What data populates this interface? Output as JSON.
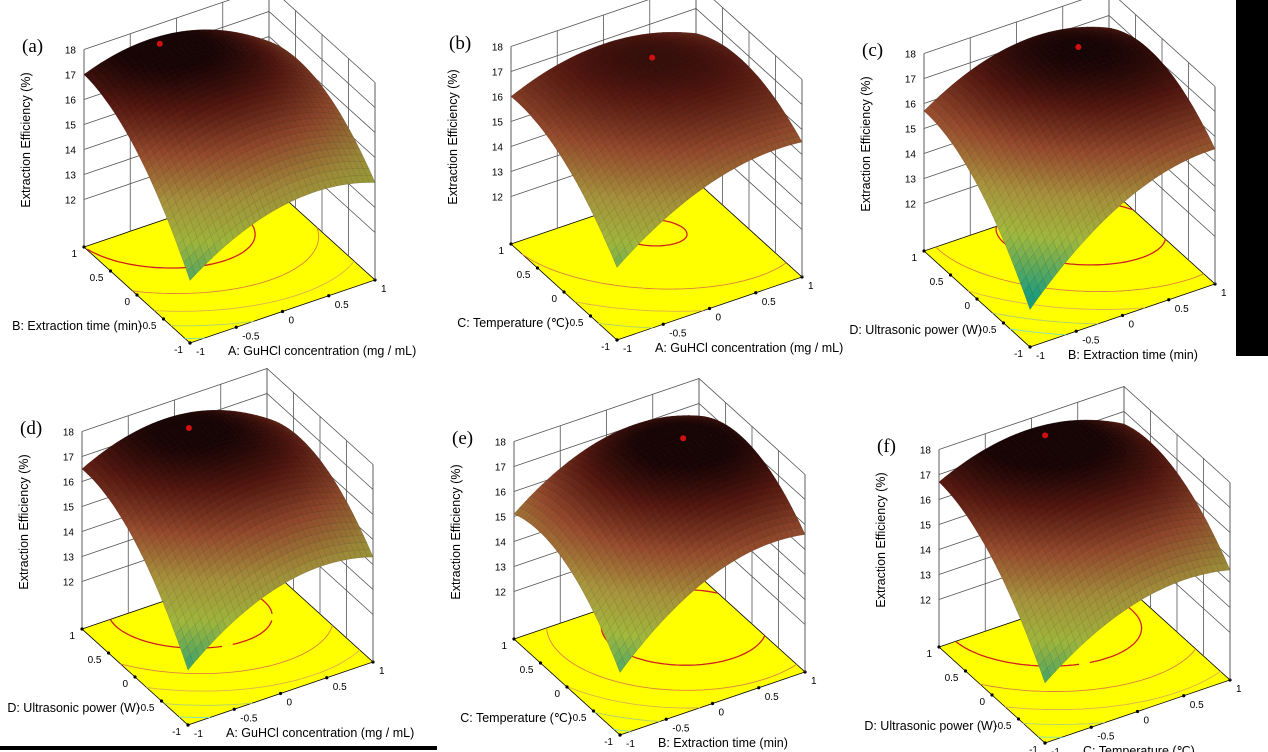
{
  "colors": {
    "floor": "#ffff00",
    "grid": "#555555",
    "optimum_marker": "#d01010",
    "surface_low": "#20a080",
    "surface_high": "#200505"
  },
  "chart_data": [
    {
      "panel_label": "(a)",
      "type": "surface",
      "zlabel": "Extraction Efficiency (%)",
      "xlabel": "A: GuHCl concentration (mg / mL)",
      "ylabel": "B: Extraction time (min)",
      "x_ticks": [
        -1,
        -0.5,
        0,
        0.5,
        1
      ],
      "y_ticks": [
        -1,
        -0.5,
        0,
        0.5,
        1
      ],
      "z_ticks": [
        12,
        13,
        14,
        15,
        16,
        17,
        18
      ],
      "zlim": [
        12,
        18
      ],
      "floor_contours": true,
      "z_estimates": [
        {
          "x": -1,
          "y": -1,
          "z": 12.6
        },
        {
          "x": 1,
          "y": -1,
          "z": 14.0
        },
        {
          "x": -1,
          "y": 1,
          "z": 17.0
        },
        {
          "x": 1,
          "y": 1,
          "z": 15.8
        },
        {
          "x": 0,
          "y": 0,
          "z": 16.9
        }
      ]
    },
    {
      "panel_label": "(b)",
      "type": "surface",
      "zlabel": "Extraction Efficiency (%)",
      "xlabel": "A: GuHCl concentration (mg / mL)",
      "ylabel": "C: Temperature (℃)",
      "x_ticks": [
        -1,
        -0.5,
        0,
        0.5,
        1
      ],
      "y_ticks": [
        -1,
        -0.5,
        0,
        0.5,
        1
      ],
      "z_ticks": [
        12,
        13,
        14,
        15,
        16,
        17,
        18
      ],
      "zlim": [
        12,
        18
      ],
      "floor_contours": true,
      "z_estimates": [
        {
          "x": -1,
          "y": -1,
          "z": 13.0
        },
        {
          "x": 1,
          "y": -1,
          "z": 15.5
        },
        {
          "x": -1,
          "y": 1,
          "z": 16.0
        },
        {
          "x": 1,
          "y": 1,
          "z": 16.0
        },
        {
          "x": 0,
          "y": 0,
          "z": 16.8
        }
      ]
    },
    {
      "panel_label": "(c)",
      "type": "surface",
      "zlabel": "Extraction Efficiency (%)",
      "xlabel": "B: Extraction time (min)",
      "ylabel": "D: Ultrasonic power (W)",
      "x_ticks": [
        -1,
        -0.5,
        0,
        0.5,
        1
      ],
      "y_ticks": [
        -1,
        -0.5,
        0,
        0.5,
        1
      ],
      "z_ticks": [
        12,
        13,
        14,
        15,
        16,
        17,
        18
      ],
      "zlim": [
        12,
        18
      ],
      "floor_contours": true,
      "z_estimates": [
        {
          "x": -1,
          "y": -1,
          "z": 11.6
        },
        {
          "x": 1,
          "y": -1,
          "z": 15.5
        },
        {
          "x": -1,
          "y": 1,
          "z": 15.7
        },
        {
          "x": 1,
          "y": 1,
          "z": 16.5
        },
        {
          "x": 0,
          "y": 0,
          "z": 16.9
        }
      ]
    },
    {
      "panel_label": "(d)",
      "type": "surface",
      "zlabel": "Extraction Efficiency (%)",
      "xlabel": "A: GuHCl concentration (mg / mL)",
      "ylabel": "D: Ultrasonic power (W)",
      "x_ticks": [
        -1,
        -0.5,
        0,
        0.5,
        1
      ],
      "y_ticks": [
        -1,
        -0.5,
        0,
        0.5,
        1
      ],
      "z_ticks": [
        12,
        13,
        14,
        15,
        16,
        17,
        18
      ],
      "zlim": [
        12,
        18
      ],
      "floor_contours": true,
      "z_estimates": [
        {
          "x": -1,
          "y": -1,
          "z": 12.3
        },
        {
          "x": 1,
          "y": -1,
          "z": 14.3
        },
        {
          "x": -1,
          "y": 1,
          "z": 16.5
        },
        {
          "x": 1,
          "y": 1,
          "z": 16.0
        },
        {
          "x": 0,
          "y": 0,
          "z": 17.0
        }
      ]
    },
    {
      "panel_label": "(e)",
      "type": "surface",
      "zlabel": "Extraction Efficiency (%)",
      "xlabel": "B: Extraction time (min)",
      "ylabel": "C: Temperature (℃)",
      "x_ticks": [
        -1,
        -0.5,
        0,
        0.5,
        1
      ],
      "y_ticks": [
        -1,
        -0.5,
        0,
        0.5,
        1
      ],
      "z_ticks": [
        12,
        13,
        14,
        15,
        16,
        17,
        18
      ],
      "zlim": [
        12,
        18
      ],
      "floor_contours": true,
      "z_estimates": [
        {
          "x": -1,
          "y": -1,
          "z": 12.6
        },
        {
          "x": 1,
          "y": -1,
          "z": 15.6
        },
        {
          "x": -1,
          "y": 1,
          "z": 15.1
        },
        {
          "x": 1,
          "y": 1,
          "z": 16.5
        },
        {
          "x": 0,
          "y": 0,
          "z": 17.2
        }
      ]
    },
    {
      "panel_label": "(f)",
      "type": "surface",
      "zlabel": "Extraction Efficiency (%)",
      "xlabel": "C: Temperature (℃)",
      "ylabel": "D: Ultrasonic power (W)",
      "x_ticks": [
        -1,
        -0.5,
        0,
        0.5,
        1
      ],
      "y_ticks": [
        -1,
        -0.5,
        0,
        0.5,
        1
      ],
      "z_ticks": [
        12,
        13,
        14,
        15,
        16,
        17,
        18
      ],
      "zlim": [
        12,
        18
      ],
      "floor_contours": true,
      "z_estimates": [
        {
          "x": -1,
          "y": -1,
          "z": 12.5
        },
        {
          "x": 1,
          "y": -1,
          "z": 14.5
        },
        {
          "x": -1,
          "y": 1,
          "z": 16.7
        },
        {
          "x": 1,
          "y": 1,
          "z": 16.5
        },
        {
          "x": 0,
          "y": 0,
          "z": 17.0
        }
      ]
    }
  ]
}
